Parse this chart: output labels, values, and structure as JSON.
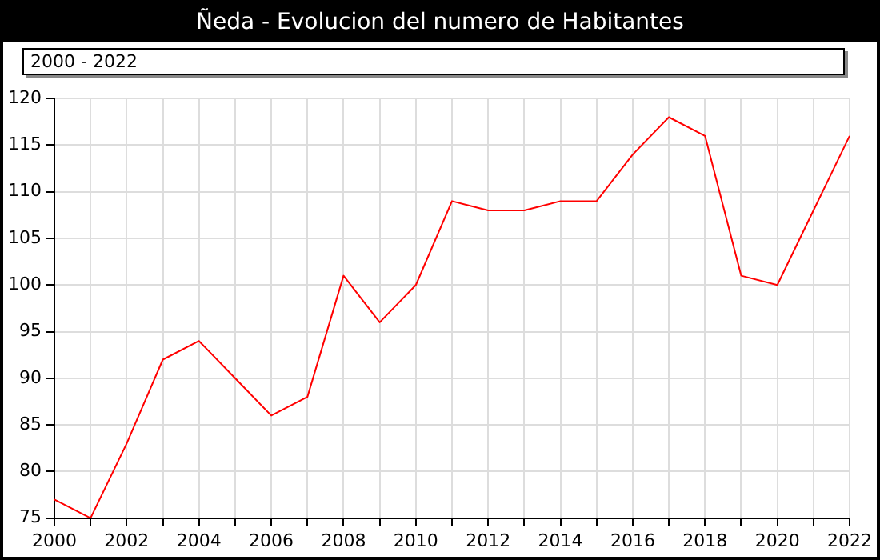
{
  "chart_data": {
    "type": "line",
    "title": "Ñeda - Evolucion del numero de Habitantes",
    "subtitle": "2000 - 2022",
    "x": [
      2000,
      2001,
      2002,
      2003,
      2004,
      2005,
      2006,
      2007,
      2008,
      2009,
      2010,
      2011,
      2012,
      2013,
      2014,
      2015,
      2016,
      2017,
      2018,
      2019,
      2020,
      2021,
      2022
    ],
    "series": [
      {
        "color": "#ff0000",
        "values": [
          77,
          75,
          83,
          92,
          94,
          90,
          86,
          88,
          101,
          96,
          100,
          109,
          108,
          108,
          109,
          109,
          114,
          118,
          116,
          101,
          100,
          108,
          116
        ]
      }
    ],
    "xlim": [
      2000,
      2022
    ],
    "xticks": [
      2000,
      {
        "value": 2001,
        "label": null
      },
      2002,
      {
        "value": 2003,
        "label": null
      },
      2004,
      {
        "value": 2005,
        "label": null
      },
      2006,
      {
        "value": 2007,
        "label": null
      },
      2008,
      {
        "value": 2009,
        "label": null
      },
      2010,
      {
        "value": 2011,
        "label": null
      },
      2012,
      {
        "value": 2013,
        "label": null
      },
      2014,
      {
        "value": 2015,
        "label": null
      },
      2016,
      {
        "value": 2017,
        "label": null
      },
      2018,
      {
        "value": 2019,
        "label": null
      },
      2020,
      {
        "value": 2021,
        "label": null
      },
      2022
    ],
    "ylim": [
      75,
      120
    ],
    "yticks": [
      75,
      80,
      85,
      90,
      95,
      100,
      105,
      110,
      115,
      120
    ],
    "grid": true,
    "legend": false,
    "marker": "none",
    "line_style": "solid"
  }
}
